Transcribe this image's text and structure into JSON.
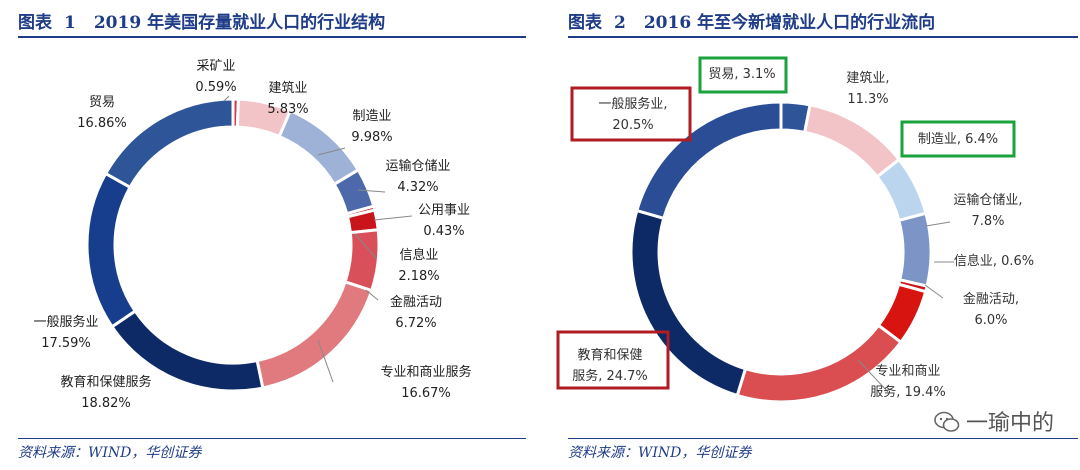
{
  "charts": [
    {
      "title_prefix": "图表",
      "title_number": "1",
      "title_text": "2019 年美国存量就业人口的行业结构",
      "source": "资料来源：WIND，华创证券"
    },
    {
      "title_prefix": "图表",
      "title_number": "2",
      "title_text": "2016 年至今新增就业人口的行业流向",
      "source": "资料来源：WIND，华创证券"
    }
  ],
  "watermark": "一瑜中的",
  "chart_data": [
    {
      "type": "pie",
      "donut": true,
      "title": "2019 年美国存量就业人口的行业结构",
      "slices": [
        {
          "name": "采矿业",
          "value": 0.59,
          "label": "0.59%",
          "color": "#cf3d4a"
        },
        {
          "name": "建筑业",
          "value": 5.83,
          "label": "5.83%",
          "color": "#f2c4c7"
        },
        {
          "name": "制造业",
          "value": 9.98,
          "label": "9.98%",
          "color": "#9eb1d6"
        },
        {
          "name": "运输仓储业",
          "value": 4.32,
          "label": "4.32%",
          "color": "#4d68ab"
        },
        {
          "name": "公用事业",
          "value": 0.43,
          "label": "0.43%",
          "color": "#b81c22"
        },
        {
          "name": "信息业",
          "value": 2.18,
          "label": "2.18%",
          "color": "#c9141b"
        },
        {
          "name": "金融活动",
          "value": 6.72,
          "label": "6.72%",
          "color": "#d9505a"
        },
        {
          "name": "专业和商业服务",
          "value": 16.67,
          "label": "16.67%",
          "color": "#e07a7e"
        },
        {
          "name": "教育和保健服务",
          "value": 18.82,
          "label": "18.82%",
          "color": "#0d2a66"
        },
        {
          "name": "一般服务业",
          "value": 17.59,
          "label": "17.59%",
          "color": "#173e8c"
        },
        {
          "name": "贸易",
          "value": 16.86,
          "label": "16.86%",
          "color": "#2f5599"
        }
      ]
    },
    {
      "type": "pie",
      "donut": true,
      "title": "2016 年至今新增就业人口的行业流向",
      "slices": [
        {
          "name": "贸易",
          "value": 3.1,
          "label": "贸易, 3.1%",
          "color": "#2f5599",
          "box": "#1aa33b"
        },
        {
          "name": "建筑业",
          "value": 11.3,
          "label": "建筑业,|11.3%",
          "color": "#f2c4c7"
        },
        {
          "name": "制造业",
          "value": 6.4,
          "label": "制造业, 6.4%",
          "color": "#bcd5ef",
          "box": "#1aa33b"
        },
        {
          "name": "运输仓储业",
          "value": 7.8,
          "label": "运输仓储业,|7.8%",
          "color": "#7c95c6"
        },
        {
          "name": "信息业",
          "value": 0.6,
          "label": "信息业, 0.6%",
          "color": "#c9141b"
        },
        {
          "name": "金融活动",
          "value": 6.0,
          "label": "金融活动,|6.0%",
          "color": "#d7140f"
        },
        {
          "name": "专业和商业服务",
          "value": 19.4,
          "label": "专业和商业|服务, 19.4%",
          "color": "#da4e52"
        },
        {
          "name": "教育和保健服务",
          "value": 24.7,
          "label": "教育和保健|服务, 24.7%",
          "color": "#0d2a66",
          "box": "#b01c22"
        },
        {
          "name": "一般服务业",
          "value": 20.5,
          "label": "一般服务业,|20.5%",
          "color": "#2a4d95",
          "box": "#b01c22"
        }
      ]
    }
  ]
}
